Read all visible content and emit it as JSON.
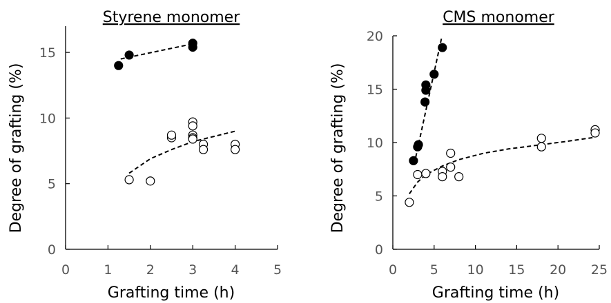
{
  "chart_data": [
    {
      "type": "scatter",
      "title": "Styrene monomer",
      "xlabel": "Grafting time (h)",
      "ylabel": "Degree of grafting (%)",
      "xlim": [
        0,
        5
      ],
      "ylim": [
        0,
        17
      ],
      "xticks": [
        "0",
        "1",
        "2",
        "3",
        "4",
        "5"
      ],
      "yticks": [
        "0",
        "5",
        "10",
        "15"
      ],
      "grid": false,
      "legend": "none",
      "series": [
        {
          "marker": "filled-circle",
          "x": [
            1.25,
            1.5,
            3.0,
            3.0
          ],
          "y": [
            14.0,
            14.8,
            15.7,
            15.4
          ],
          "trend": {
            "style": "dashed",
            "x": [
              1.3,
              3.0
            ],
            "y": [
              14.5,
              15.65
            ]
          }
        },
        {
          "marker": "open-circle",
          "x": [
            1.5,
            2.0,
            2.5,
            2.5,
            3.0,
            3.0,
            3.0,
            3.0,
            3.0,
            3.25,
            3.25,
            4.0,
            4.0
          ],
          "y": [
            5.3,
            5.2,
            8.5,
            8.7,
            9.7,
            9.4,
            8.7,
            8.5,
            8.4,
            8.0,
            7.6,
            8.0,
            7.6
          ],
          "trend": {
            "style": "dashed",
            "x": [
              1.5,
              2.0,
              2.5,
              3.0,
              3.5,
              4.0
            ],
            "y": [
              5.8,
              6.9,
              7.6,
              8.2,
              8.6,
              9.0
            ]
          }
        }
      ]
    },
    {
      "type": "scatter",
      "title": "CMS monomer",
      "xlabel": "Grafting time (h)",
      "ylabel": "Degree of grafting (%)",
      "xlim": [
        0,
        25
      ],
      "ylim": [
        0,
        20
      ],
      "xticks": [
        "0",
        "5",
        "10",
        "15",
        "20",
        "25"
      ],
      "yticks": [
        "0",
        "5",
        "10",
        "15",
        "20"
      ],
      "grid": false,
      "legend": "none",
      "series": [
        {
          "marker": "filled-circle",
          "x": [
            2.5,
            3.0,
            3.1,
            3.9,
            4.0,
            4.0,
            5.0,
            6.0
          ],
          "y": [
            8.3,
            9.6,
            9.8,
            13.8,
            14.9,
            15.4,
            16.4,
            18.9
          ],
          "trend": {
            "style": "dashed",
            "x": [
              2.6,
              5.9
            ],
            "y": [
              8.0,
              19.8
            ]
          }
        },
        {
          "marker": "open-circle",
          "x": [
            2.0,
            3.0,
            4.0,
            6.0,
            6.0,
            7.0,
            7.0,
            8.0,
            18.0,
            18.0,
            24.5,
            24.5
          ],
          "y": [
            4.4,
            7.0,
            7.1,
            7.3,
            6.8,
            7.7,
            9.0,
            6.8,
            10.4,
            9.6,
            11.2,
            10.9
          ],
          "trend": {
            "style": "dashed",
            "x": [
              2.0,
              3.0,
              4.0,
              6.0,
              8.0,
              11.0,
              14.0,
              18.0,
              21.0,
              24.5
            ],
            "y": [
              5.2,
              6.3,
              7.0,
              7.8,
              8.4,
              9.0,
              9.4,
              9.8,
              10.1,
              10.5
            ]
          }
        }
      ]
    }
  ]
}
